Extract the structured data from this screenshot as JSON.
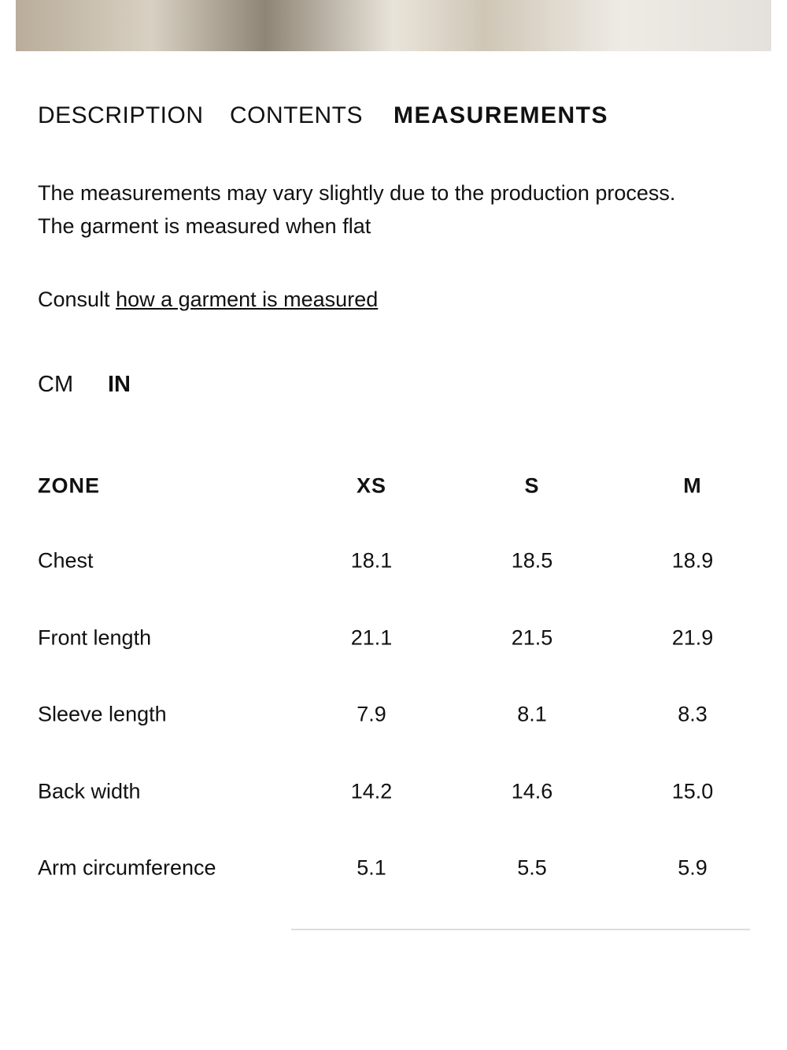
{
  "tabs": [
    "DESCRIPTION",
    "CONTENTS",
    "MEASUREMENTS"
  ],
  "description": [
    "The measurements may vary slightly due to the production process.",
    "The garment is measured when flat"
  ],
  "consult": {
    "text": "Consult ",
    "link": "how a garment is measured"
  },
  "units": [
    "CM",
    "IN"
  ],
  "table": {
    "header": [
      "ZONE",
      "XS",
      "S",
      "M"
    ],
    "rows": [
      [
        "Chest",
        "18.1",
        "18.5",
        "18.9"
      ],
      [
        "Front length",
        "21.1",
        "21.5",
        "21.9"
      ],
      [
        "Sleeve length",
        "7.9",
        "8.1",
        "8.3"
      ],
      [
        "Back width",
        "14.2",
        "14.6",
        "15.0"
      ],
      [
        "Arm circumference",
        "5.1",
        "5.5",
        "5.9"
      ]
    ]
  }
}
